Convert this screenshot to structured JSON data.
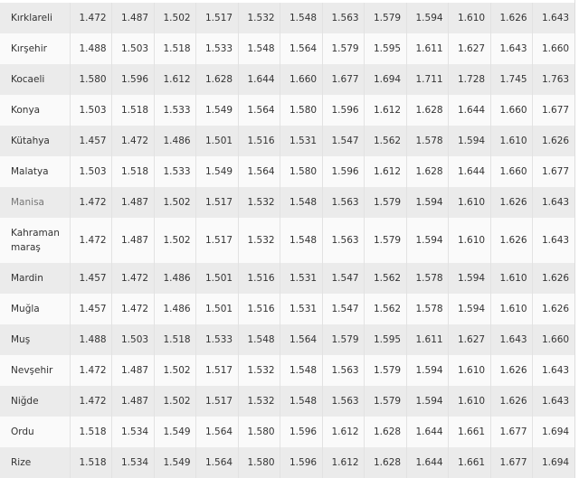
{
  "table": {
    "rows": [
      {
        "city": "Kırklareli",
        "values": [
          "1.472",
          "1.487",
          "1.502",
          "1.517",
          "1.532",
          "1.548",
          "1.563",
          "1.579",
          "1.594",
          "1.610",
          "1.626",
          "1.643"
        ]
      },
      {
        "city": "Kırşehir",
        "values": [
          "1.488",
          "1.503",
          "1.518",
          "1.533",
          "1.548",
          "1.564",
          "1.579",
          "1.595",
          "1.611",
          "1.627",
          "1.643",
          "1.660"
        ]
      },
      {
        "city": "Kocaeli",
        "values": [
          "1.580",
          "1.596",
          "1.612",
          "1.628",
          "1.644",
          "1.660",
          "1.677",
          "1.694",
          "1.711",
          "1.728",
          "1.745",
          "1.763"
        ]
      },
      {
        "city": "Konya",
        "values": [
          "1.503",
          "1.518",
          "1.533",
          "1.549",
          "1.564",
          "1.580",
          "1.596",
          "1.612",
          "1.628",
          "1.644",
          "1.660",
          "1.677"
        ]
      },
      {
        "city": "Kütahya",
        "values": [
          "1.457",
          "1.472",
          "1.486",
          "1.501",
          "1.516",
          "1.531",
          "1.547",
          "1.562",
          "1.578",
          "1.594",
          "1.610",
          "1.626"
        ]
      },
      {
        "city": "Malatya",
        "values": [
          "1.503",
          "1.518",
          "1.533",
          "1.549",
          "1.564",
          "1.580",
          "1.596",
          "1.612",
          "1.628",
          "1.644",
          "1.660",
          "1.677"
        ]
      },
      {
        "city": "Manisa",
        "values": [
          "1.472",
          "1.487",
          "1.502",
          "1.517",
          "1.532",
          "1.548",
          "1.563",
          "1.579",
          "1.594",
          "1.610",
          "1.626",
          "1.643"
        ]
      },
      {
        "city": "Kahraman maraş",
        "values": [
          "1.472",
          "1.487",
          "1.502",
          "1.517",
          "1.532",
          "1.548",
          "1.563",
          "1.579",
          "1.594",
          "1.610",
          "1.626",
          "1.643"
        ]
      },
      {
        "city": "Mardin",
        "values": [
          "1.457",
          "1.472",
          "1.486",
          "1.501",
          "1.516",
          "1.531",
          "1.547",
          "1.562",
          "1.578",
          "1.594",
          "1.610",
          "1.626"
        ]
      },
      {
        "city": "Muğla",
        "values": [
          "1.457",
          "1.472",
          "1.486",
          "1.501",
          "1.516",
          "1.531",
          "1.547",
          "1.562",
          "1.578",
          "1.594",
          "1.610",
          "1.626"
        ]
      },
      {
        "city": "Muş",
        "values": [
          "1.488",
          "1.503",
          "1.518",
          "1.533",
          "1.548",
          "1.564",
          "1.579",
          "1.595",
          "1.611",
          "1.627",
          "1.643",
          "1.660"
        ]
      },
      {
        "city": "Nevşehir",
        "values": [
          "1.472",
          "1.487",
          "1.502",
          "1.517",
          "1.532",
          "1.548",
          "1.563",
          "1.579",
          "1.594",
          "1.610",
          "1.626",
          "1.643"
        ]
      },
      {
        "city": "Niğde",
        "values": [
          "1.472",
          "1.487",
          "1.502",
          "1.517",
          "1.532",
          "1.548",
          "1.563",
          "1.579",
          "1.594",
          "1.610",
          "1.626",
          "1.643"
        ]
      },
      {
        "city": "Ordu",
        "values": [
          "1.518",
          "1.534",
          "1.549",
          "1.564",
          "1.580",
          "1.596",
          "1.612",
          "1.628",
          "1.644",
          "1.661",
          "1.677",
          "1.694"
        ]
      },
      {
        "city": "Rize",
        "values": [
          "1.518",
          "1.534",
          "1.549",
          "1.564",
          "1.580",
          "1.596",
          "1.612",
          "1.628",
          "1.644",
          "1.661",
          "1.677",
          "1.694"
        ]
      }
    ]
  }
}
